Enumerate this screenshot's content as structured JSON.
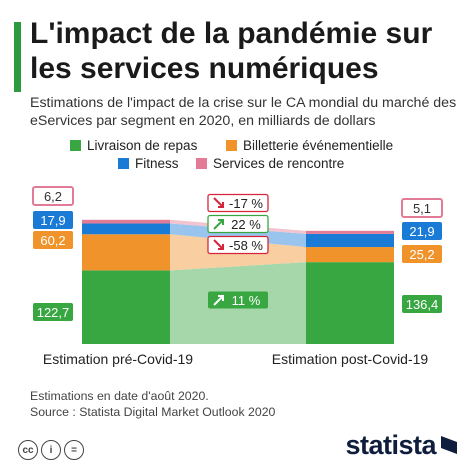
{
  "header": {
    "title": "L'impact de la pandémie sur les services numériques",
    "subtitle": "Estimations de l'impact de la crise sur le CA mondial du marché des eServices par segment en 2020, en milliards de dollars"
  },
  "colors": {
    "accent": "#2e9a3f",
    "livraison": "#38a742",
    "billetterie": "#f1932b",
    "fitness": "#1a7bd6",
    "rencontre": "#e27b96",
    "change_up": "#38a742",
    "change_down": "#d6253a"
  },
  "chart_data": {
    "type": "bar",
    "stacked": true,
    "categories": [
      "Estimation pré-Covid-19",
      "Estimation post-Covid-19"
    ],
    "series": [
      {
        "name": "Livraison de repas",
        "values": [
          122.7,
          136.4
        ],
        "labels": [
          "122,7",
          "136,4"
        ],
        "change": "11 %",
        "direction": "up"
      },
      {
        "name": "Billetterie événementielle",
        "values": [
          60.2,
          25.2
        ],
        "labels": [
          "60,2",
          "25,2"
        ],
        "change": "-58 %",
        "direction": "down"
      },
      {
        "name": "Fitness",
        "values": [
          17.9,
          21.9
        ],
        "labels": [
          "17,9",
          "21,9"
        ],
        "change": "22 %",
        "direction": "up"
      },
      {
        "name": "Services de rencontre",
        "values": [
          6.2,
          5.1
        ],
        "labels": [
          "6,2",
          "5,1"
        ],
        "change": "-17 %",
        "direction": "down"
      }
    ],
    "legend_position": "top",
    "grid": false
  },
  "footer": {
    "notes": [
      "Estimations en date d'août 2020.",
      "Source : Statista Digital Market Outlook 2020"
    ],
    "license_icons": [
      "cc",
      "i",
      "="
    ],
    "brand": "statista"
  }
}
